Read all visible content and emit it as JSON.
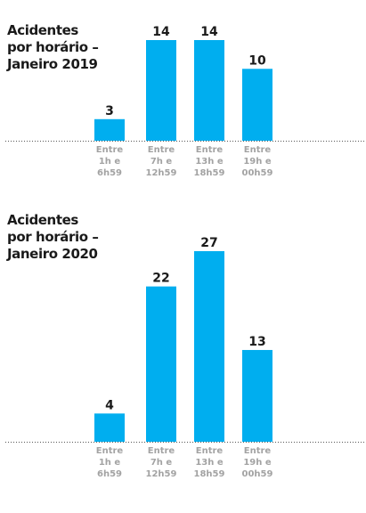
{
  "chart_data": [
    {
      "type": "bar",
      "title": [
        "Acidentes",
        "por horário –",
        "Janeiro 2019"
      ],
      "categories": [
        [
          "Entre",
          "1h e",
          "6h59"
        ],
        [
          "Entre",
          "7h e",
          "12h59"
        ],
        [
          "Entre",
          "13h e",
          "18h59"
        ],
        [
          "Entre",
          "19h e",
          "00h59"
        ]
      ],
      "values": [
        3,
        14,
        14,
        10
      ],
      "data_labels": [
        "3",
        "14",
        "14",
        "10"
      ],
      "color": "#00aeef",
      "ylim": [
        0,
        14
      ],
      "grid": false
    },
    {
      "type": "bar",
      "title": [
        "Acidentes",
        "por horário –",
        "Janeiro 2020"
      ],
      "categories": [
        [
          "Entre",
          "1h e",
          "6h59"
        ],
        [
          "Entre",
          "7h e",
          "12h59"
        ],
        [
          "Entre",
          "13h e",
          "18h59"
        ],
        [
          "Entre",
          "19h e",
          "00h59"
        ]
      ],
      "values": [
        4,
        22,
        27,
        13
      ],
      "data_labels": [
        "4",
        "22",
        "27",
        "13"
      ],
      "color": "#00aeef",
      "ylim": [
        0,
        27
      ],
      "grid": false
    }
  ]
}
